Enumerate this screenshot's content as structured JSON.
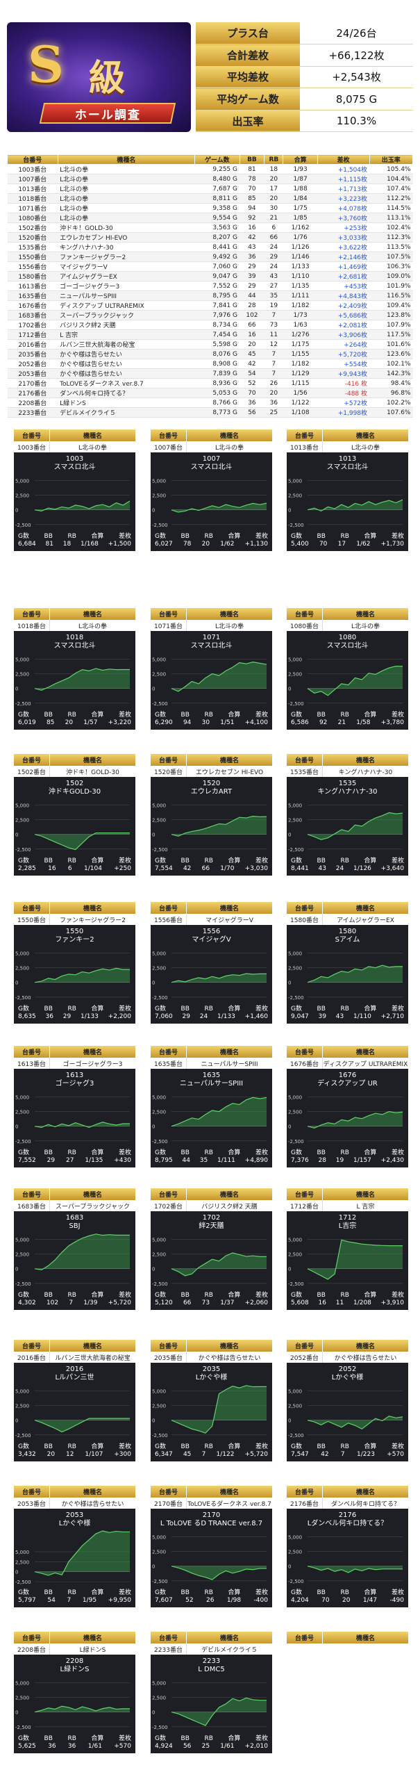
{
  "summary": [
    {
      "k": "プラス台",
      "v": "24/26台"
    },
    {
      "k": "合計差枚",
      "v": "+66,122枚"
    },
    {
      "k": "平均差枚",
      "v": "+2,543枚"
    },
    {
      "k": "平均ゲーム数",
      "v": "8,075 G"
    },
    {
      "k": "出玉率",
      "v": "110.3%"
    }
  ],
  "logo": {
    "big": "S",
    "kanji": "級",
    "band": "ホール調査"
  },
  "table_headers": [
    "台番号",
    "機種名",
    "ゲーム数",
    "BB",
    "RB",
    "合算",
    "差枚",
    "出玉率"
  ],
  "rows": [
    [
      "1003番台",
      "L北斗の拳",
      "9,255 G",
      "81",
      "18",
      "1/93",
      "+1,504枚",
      "105.4%"
    ],
    [
      "1007番台",
      "L北斗の拳",
      "8,480 G",
      "78",
      "20",
      "1/87",
      "+1,115枚",
      "104.4%"
    ],
    [
      "1013番台",
      "L北斗の拳",
      "7,687 G",
      "70",
      "17",
      "1/88",
      "+1,713枚",
      "107.4%"
    ],
    [
      "1018番台",
      "L北斗の拳",
      "8,811 G",
      "85",
      "20",
      "1/84",
      "+3,223枚",
      "112.2%"
    ],
    [
      "1071番台",
      "L北斗の拳",
      "9,358 G",
      "94",
      "30",
      "1/75",
      "+4,078枚",
      "114.5%"
    ],
    [
      "1080番台",
      "L北斗の拳",
      "9,554 G",
      "92",
      "21",
      "1/85",
      "+3,760枚",
      "113.1%"
    ],
    [
      "1502番台",
      "沖ドキ！GOLD-30",
      "3,563 G",
      "16",
      "6",
      "1/162",
      "+253枚",
      "102.4%"
    ],
    [
      "1520番台",
      "エウレカセブン HI-EVO",
      "8,207 G",
      "42",
      "66",
      "1/76",
      "+3,033枚",
      "112.3%"
    ],
    [
      "1535番台",
      "キングハナハナ-30",
      "8,441 G",
      "43",
      "24",
      "1/126",
      "+3,622枚",
      "113.5%"
    ],
    [
      "1550番台",
      "ファンキージャグラー2",
      "9,492 G",
      "36",
      "29",
      "1/146",
      "+2,146枚",
      "107.5%"
    ],
    [
      "1556番台",
      "マイジャグラーV",
      "7,060 G",
      "29",
      "24",
      "1/133",
      "+1,469枚",
      "106.3%"
    ],
    [
      "1580番台",
      "アイムジャグラーEX",
      "9,047 G",
      "39",
      "43",
      "1/110",
      "+2,681枚",
      "109.0%"
    ],
    [
      "1613番台",
      "ゴーゴージャグラー3",
      "7,552 G",
      "29",
      "27",
      "1/135",
      "+453枚",
      "101.9%"
    ],
    [
      "1635番台",
      "ニューパルサーSPIII",
      "8,795 G",
      "44",
      "35",
      "1/111",
      "+4,843枚",
      "116.5%"
    ],
    [
      "1676番台",
      "ディスクアップ ULTRAREMIX",
      "7,841 G",
      "28",
      "19",
      "1/182",
      "+2,409枚",
      "109.4%"
    ],
    [
      "1683番台",
      "スーパーブラックジャック",
      "7,976 G",
      "102",
      "7",
      "1/73",
      "+5,686枚",
      "123.8%"
    ],
    [
      "1702番台",
      "バジリスク絆2 天膳",
      "8,734 G",
      "66",
      "73",
      "1/63",
      "+2,081枚",
      "107.9%"
    ],
    [
      "1712番台",
      "L 吉宗",
      "7,454 G",
      "16",
      "11",
      "1/276",
      "+3,906枚",
      "117.5%"
    ],
    [
      "2016番台",
      "ルパン三世大航海者の秘宝",
      "5,598 G",
      "20",
      "12",
      "1/175",
      "+264枚",
      "101.6%"
    ],
    [
      "2035番台",
      "かぐや様は告らせたい",
      "8,076 G",
      "45",
      "7",
      "1/155",
      "+5,720枚",
      "123.6%"
    ],
    [
      "2052番台",
      "かぐや様は告らせたい",
      "8,908 G",
      "42",
      "7",
      "1/182",
      "+554枚",
      "102.1%"
    ],
    [
      "2053番台",
      "かぐや様は告らせたい",
      "7,839 G",
      "54",
      "7",
      "1/129",
      "+9,943枚",
      "142.3%"
    ],
    [
      "2170番台",
      "ToLOVEるダークネス ver.8.7",
      "8,936 G",
      "52",
      "26",
      "1/115",
      "-416 枚",
      "98.4%"
    ],
    [
      "2176番台",
      "ダンベル何キロ持てる？",
      "5,053 G",
      "70",
      "20",
      "1/56",
      "-488 枚",
      "96.8%"
    ],
    [
      "2208番台",
      "L緑ドンS",
      "8,766 G",
      "36",
      "36",
      "1/122",
      "+572枚",
      "102.2%"
    ],
    [
      "2233番台",
      "デビルメイクライ５",
      "8,773 G",
      "56",
      "25",
      "1/108",
      "+1,998枚",
      "107.6%"
    ]
  ],
  "card_labels": {
    "no": "台番号",
    "name": "機種名",
    "foot": [
      "G数",
      "BB",
      "RB",
      "合算",
      "差枚"
    ],
    "yticks": [
      "5,000",
      "2,500",
      "0",
      "-2,500"
    ]
  },
  "cards": [
    {
      "no": "1003番台",
      "name": "L北斗の拳",
      "num": "1003",
      "title": "スマスロ北斗",
      "foot": [
        "6,684",
        "81",
        "18",
        "1/168",
        "+1,500"
      ],
      "pts": [
        0,
        -200,
        300,
        100,
        500,
        300,
        800,
        600,
        200,
        700,
        900,
        500,
        1200,
        800,
        1500
      ]
    },
    {
      "no": "1007番台",
      "name": "L北斗の拳",
      "num": "1007",
      "title": "スマスロ北斗",
      "foot": [
        "6,027",
        "78",
        "20",
        "1/62",
        "+1,130"
      ],
      "pts": [
        0,
        -400,
        -200,
        200,
        -100,
        300,
        700,
        400,
        900,
        600,
        400,
        800,
        1100,
        900,
        1130
      ]
    },
    {
      "no": "1013番台",
      "name": "L北斗の拳",
      "num": "1013",
      "title": "スマスロ北斗",
      "foot": [
        "5,400",
        "70",
        "17",
        "1/62",
        "+1,730"
      ],
      "pts": [
        0,
        300,
        -200,
        500,
        200,
        900,
        400,
        1100,
        800,
        1400,
        900,
        1300,
        1600,
        1200,
        1730
      ]
    },
    {
      "no": "1018番台",
      "name": "L北斗の拳",
      "num": "1018",
      "title": "スマスロ北斗",
      "foot": [
        "6,019",
        "85",
        "20",
        "1/57",
        "+3,220"
      ],
      "pts": [
        0,
        -300,
        200,
        800,
        1300,
        1800,
        2600,
        3200,
        3000,
        3400,
        3100,
        3300,
        3200,
        3220,
        3220
      ]
    },
    {
      "no": "1071番台",
      "name": "L北斗の拳",
      "num": "1071",
      "title": "スマスロ北斗",
      "foot": [
        "6,290",
        "94",
        "30",
        "1/51",
        "+4,100"
      ],
      "pts": [
        0,
        -500,
        300,
        1200,
        800,
        1800,
        2500,
        2200,
        3000,
        3600,
        4400,
        4200,
        4500,
        4300,
        4100
      ]
    },
    {
      "no": "1080番台",
      "name": "L北斗の拳",
      "num": "1080",
      "title": "スマスロ北斗",
      "foot": [
        "6,586",
        "92",
        "21",
        "1/58",
        "+3,780"
      ],
      "pts": [
        0,
        -800,
        -500,
        -1200,
        -200,
        800,
        600,
        1800,
        1500,
        2600,
        2400,
        3000,
        3500,
        3800,
        3780
      ]
    },
    {
      "no": "1502番台",
      "name": "沖ドキ！GOLD-30",
      "num": "1502",
      "title": "沖ドキGOLD-30",
      "foot": [
        "2,285",
        "16",
        "6",
        "1/104",
        "+250"
      ],
      "pts": [
        0,
        -300,
        -800,
        -1300,
        -1800,
        -2300,
        -2600,
        -1500,
        -400,
        250,
        250,
        250,
        250,
        250,
        250
      ]
    },
    {
      "no": "1520番台",
      "name": "エウレカセブン HI-EVO",
      "num": "1520",
      "title": "エウレカART",
      "foot": [
        "7,554",
        "42",
        "66",
        "1/70",
        "+3,030"
      ],
      "pts": [
        0,
        -300,
        200,
        500,
        700,
        1000,
        1400,
        1800,
        1700,
        2300,
        2900,
        2800,
        3100,
        3000,
        3030
      ]
    },
    {
      "no": "1535番台",
      "name": "キングハナハナ-30",
      "num": "1535",
      "title": "キングハナハナ-30",
      "foot": [
        "8,441",
        "43",
        "24",
        "1/126",
        "+3,640"
      ],
      "pts": [
        0,
        -400,
        -900,
        -600,
        100,
        800,
        500,
        1600,
        1400,
        2200,
        2800,
        3200,
        3700,
        3500,
        3640
      ]
    },
    {
      "no": "1550番台",
      "name": "ファンキージャグラー2",
      "num": "1550",
      "title": "ファンキー2",
      "foot": [
        "8,635",
        "36",
        "29",
        "1/133",
        "+2,200"
      ],
      "pts": [
        0,
        200,
        700,
        500,
        1100,
        1400,
        1300,
        1800,
        1600,
        2000,
        2300,
        2100,
        2400,
        2200,
        2200
      ]
    },
    {
      "no": "1556番台",
      "name": "マイジャグラーV",
      "num": "1556",
      "title": "マイジャグV",
      "foot": [
        "7,060",
        "29",
        "24",
        "1/133",
        "+1,460"
      ],
      "pts": [
        0,
        300,
        100,
        500,
        800,
        600,
        1000,
        700,
        1100,
        1300,
        1200,
        1500,
        1400,
        1460,
        1460
      ]
    },
    {
      "no": "1580番台",
      "name": "アイムジャグラーEX",
      "num": "1580",
      "title": "Sアイム",
      "foot": [
        "9,047",
        "39",
        "43",
        "1/110",
        "+2,710"
      ],
      "pts": [
        0,
        400,
        1000,
        800,
        1400,
        1900,
        1700,
        2300,
        2100,
        2700,
        2500,
        2900,
        2600,
        2710,
        2710
      ]
    },
    {
      "no": "1613番台",
      "name": "ゴーゴージャグラー3",
      "num": "1613",
      "title": "ゴージャグ3",
      "foot": [
        "7,552",
        "29",
        "27",
        "1/135",
        "+430"
      ],
      "pts": [
        0,
        -200,
        300,
        -100,
        400,
        100,
        600,
        200,
        -200,
        300,
        700,
        400,
        200,
        430,
        430
      ]
    },
    {
      "no": "1635番台",
      "name": "ニューパルサーSPIII",
      "num": "1635",
      "title": "ニューパルサーSPIII",
      "foot": [
        "8,795",
        "44",
        "35",
        "1/111",
        "+4,890"
      ],
      "pts": [
        0,
        400,
        900,
        1400,
        1200,
        2000,
        2700,
        2500,
        3300,
        3900,
        3700,
        4500,
        4900,
        4700,
        4890
      ]
    },
    {
      "no": "1676番台",
      "name": "ディスクアップ ULTRAREMIX",
      "num": "1676",
      "title": "ディスクアップ UR",
      "foot": [
        "7,376",
        "28",
        "19",
        "1/157",
        "+2,430"
      ],
      "pts": [
        0,
        -300,
        200,
        600,
        400,
        1100,
        900,
        1500,
        1300,
        1800,
        2200,
        2000,
        2500,
        2300,
        2430
      ]
    },
    {
      "no": "1683番台",
      "name": "スーパーブラックジャック",
      "num": "1683",
      "title": "SBJ",
      "foot": [
        "4,302",
        "102",
        "7",
        "1/39",
        "+5,720"
      ],
      "pts": [
        0,
        -200,
        500,
        1500,
        2800,
        3900,
        4600,
        5200,
        5600,
        5900,
        5700,
        5800,
        5720,
        5720,
        5720
      ]
    },
    {
      "no": "1702番台",
      "name": "バジリスク絆2 天膳",
      "num": "1702",
      "title": "絆2天膳",
      "foot": [
        "5,120",
        "66",
        "73",
        "1/37",
        "+2,060"
      ],
      "pts": [
        0,
        -500,
        -1200,
        -900,
        200,
        900,
        1600,
        1300,
        2200,
        2700,
        2400,
        2100,
        2200,
        2060,
        2060
      ]
    },
    {
      "no": "1712番台",
      "name": "L 吉宗",
      "num": "1712",
      "title": "L吉宗",
      "foot": [
        "5,608",
        "16",
        "11",
        "1/208",
        "+3,910"
      ],
      "pts": [
        0,
        -600,
        -1200,
        -1800,
        -900,
        4900,
        4600,
        4400,
        4200,
        4100,
        4000,
        3950,
        3910,
        3910,
        3910
      ]
    },
    {
      "no": "2016番台",
      "name": "ルパン三世大航海者の秘宝",
      "num": "2016",
      "title": "Lルパン三世",
      "foot": [
        "3,432",
        "20",
        "12",
        "1/107",
        "+300"
      ],
      "pts": [
        0,
        -400,
        -900,
        -1400,
        -2000,
        -1500,
        -900,
        -300,
        300,
        300,
        300,
        300,
        300,
        300,
        300
      ]
    },
    {
      "no": "2035番台",
      "name": "かぐや様は告らせたい",
      "num": "2035",
      "title": "Lかぐや様",
      "foot": [
        "6,347",
        "45",
        "7",
        "1/122",
        "+5,720"
      ],
      "pts": [
        0,
        -500,
        -1000,
        -1500,
        -1800,
        -2200,
        -1000,
        4500,
        5200,
        5800,
        5500,
        5900,
        5700,
        5720,
        5720
      ]
    },
    {
      "no": "2052番台",
      "name": "かぐや様は告らせたい",
      "num": "2052",
      "title": "Lかぐや様",
      "foot": [
        "7,547",
        "42",
        "7",
        "1/223",
        "+570"
      ],
      "pts": [
        0,
        -300,
        -800,
        -200,
        -700,
        -1200,
        -500,
        -900,
        -1500,
        -600,
        300,
        -100,
        700,
        400,
        570
      ]
    },
    {
      "no": "2053番台",
      "name": "かぐや様は告らせたい",
      "num": "2053",
      "title": "Lかぐや様",
      "foot": [
        "5,797",
        "54",
        "7",
        "1/95",
        "+9,950"
      ],
      "pts": [
        0,
        -400,
        -900,
        -300,
        -800,
        2500,
        4500,
        6500,
        8000,
        9500,
        10200,
        9800,
        10100,
        9950,
        9950
      ]
    },
    {
      "no": "2170番台",
      "name": "ToLOVEるダークネス ver.8.7",
      "num": "2170",
      "title": "L ToLOVE るD TRANCE ver.8.7",
      "foot": [
        "7,607",
        "52",
        "26",
        "1/98",
        "-400"
      ],
      "pts": [
        0,
        -300,
        -700,
        -1200,
        -1600,
        -1900,
        -2300,
        -1400,
        -800,
        -1200,
        -900,
        -500,
        -600,
        -400,
        -400
      ]
    },
    {
      "no": "2176番台",
      "name": "ダンベル何キロ持てる？",
      "num": "2176",
      "title": "Lダンベル何キロ持てる？",
      "foot": [
        "4,204",
        "70",
        "20",
        "1/47",
        "-490"
      ],
      "pts": [
        0,
        -300,
        -700,
        -400,
        -900,
        -600,
        -1100,
        -500,
        -800,
        -400,
        -600,
        -490,
        -490,
        -490,
        -490
      ]
    },
    {
      "no": "2208番台",
      "name": "L緑ドンS",
      "num": "2208",
      "title": "L緑ドンS",
      "foot": [
        "5,625",
        "36",
        "36",
        "1/61",
        "+570"
      ],
      "pts": [
        0,
        300,
        700,
        500,
        1000,
        800,
        400,
        900,
        600,
        200,
        600,
        800,
        500,
        570,
        570
      ]
    },
    {
      "no": "2233番台",
      "name": "デビルメイクライ５",
      "num": "2233",
      "title": "L DMC5",
      "foot": [
        "4,924",
        "56",
        "25",
        "1/61",
        "+2,010"
      ],
      "pts": [
        0,
        -300,
        -800,
        -1300,
        -1800,
        -2300,
        -600,
        800,
        1400,
        2300,
        1900,
        2400,
        2100,
        2010,
        2010
      ]
    }
  ],
  "empty_card": {
    "no": "台番号",
    "name": "機種名"
  },
  "colors": {
    "gold": "#d9ab3b",
    "green": "#3fa34d",
    "card_bg": "#1d1f24",
    "pos": "#2a55d6",
    "neg": "#e0322d"
  }
}
